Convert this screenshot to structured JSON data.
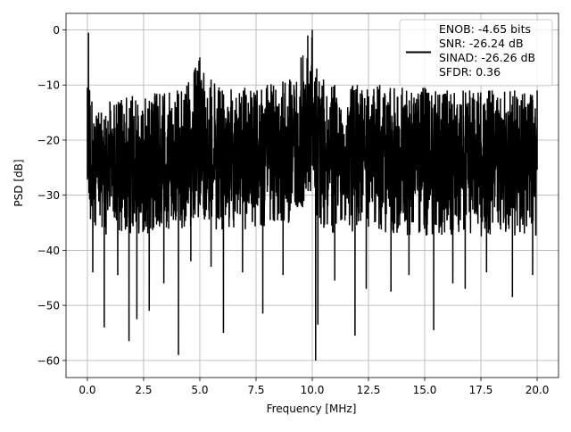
{
  "chart_data": {
    "type": "line",
    "xlabel": "Frequency [MHz]",
    "ylabel": "PSD [dB]",
    "xlim": [
      -0.95,
      20.95
    ],
    "ylim": [
      -63.1,
      3.0
    ],
    "xticks": [
      0.0,
      2.5,
      5.0,
      7.5,
      10.0,
      12.5,
      15.0,
      17.5,
      20.0
    ],
    "xtick_labels": [
      "0.0",
      "2.5",
      "5.0",
      "7.5",
      "10.0",
      "12.5",
      "15.0",
      "17.5",
      "20.0"
    ],
    "yticks": [
      0,
      -10,
      -20,
      -30,
      -40,
      -50,
      -60
    ],
    "ytick_labels": [
      "0",
      "−10",
      "−20",
      "−30",
      "−40",
      "−50",
      "−60"
    ],
    "grid": true,
    "legend": {
      "placement": "upper-right",
      "entries": [
        "ENOB: -4.65 bits",
        "SNR: -26.24 dB",
        "SINAD: -26.26 dB",
        "SFDR: 0.36"
      ]
    },
    "series": [
      {
        "color": "#000000",
        "envelope": {
          "x": [
            0.0,
            0.05,
            0.1,
            0.2,
            0.5,
            1.0,
            2.0,
            3.0,
            4.0,
            4.5,
            5.0,
            5.5,
            6.0,
            7.0,
            8.0,
            9.0,
            9.5,
            9.8,
            10.0,
            10.2,
            10.5,
            11.0,
            12.0,
            13.0,
            14.0,
            15.0,
            16.0,
            17.0,
            18.0,
            19.0,
            20.0
          ],
          "upper": [
            -10.5,
            -0.5,
            -11.0,
            -13.0,
            -15.0,
            -13.0,
            -12.0,
            -11.5,
            -11.0,
            -9.5,
            -5.0,
            -9.0,
            -11.0,
            -10.5,
            -10.0,
            -9.0,
            -5.0,
            -1.0,
            0.0,
            -7.0,
            -9.0,
            -10.0,
            -10.0,
            -10.0,
            -10.5,
            -10.5,
            -11.0,
            -11.0,
            -11.0,
            -11.0,
            -11.0
          ],
          "mid_hi": [
            -17.0,
            -14.0,
            -18.0,
            -20.0,
            -19.0,
            -18.0,
            -17.5,
            -17.0,
            -16.5,
            -15.5,
            -13.0,
            -15.0,
            -16.0,
            -16.0,
            -16.0,
            -15.0,
            -13.0,
            -11.0,
            -10.0,
            -13.0,
            -15.0,
            -16.0,
            -16.0,
            -16.0,
            -16.0,
            -16.0,
            -16.0,
            -16.0,
            -16.0,
            -16.0,
            -16.0
          ],
          "mid_lo": [
            -29.0,
            -28.0,
            -30.0,
            -33.0,
            -32.0,
            -31.0,
            -31.0,
            -31.0,
            -30.5,
            -29.5,
            -28.0,
            -29.5,
            -30.0,
            -30.0,
            -29.5,
            -28.5,
            -27.0,
            -25.0,
            -24.0,
            -27.0,
            -29.0,
            -30.0,
            -30.0,
            -30.0,
            -30.5,
            -30.5,
            -30.5,
            -30.5,
            -30.5,
            -30.5,
            -30.5
          ],
          "lower": [
            -33.0,
            -33.0,
            -36.0,
            -39.0,
            -38.0,
            -37.0,
            -37.0,
            -37.0,
            -36.5,
            -36.0,
            -34.0,
            -36.0,
            -36.5,
            -36.5,
            -36.0,
            -35.0,
            -33.0,
            -31.0,
            -29.5,
            -34.0,
            -36.0,
            -37.0,
            -37.0,
            -37.0,
            -37.5,
            -37.5,
            -37.5,
            -37.5,
            -37.5,
            -37.5,
            -37.5
          ]
        },
        "dips": [
          {
            "x": 0.24,
            "y": -44.0
          },
          {
            "x": 0.75,
            "y": -54.0
          },
          {
            "x": 1.35,
            "y": -44.5
          },
          {
            "x": 1.85,
            "y": -56.5
          },
          {
            "x": 2.2,
            "y": -52.5
          },
          {
            "x": 2.75,
            "y": -51.0
          },
          {
            "x": 3.4,
            "y": -46.0
          },
          {
            "x": 4.05,
            "y": -59.0
          },
          {
            "x": 4.6,
            "y": -42.0
          },
          {
            "x": 5.5,
            "y": -43.0
          },
          {
            "x": 6.05,
            "y": -55.0
          },
          {
            "x": 6.9,
            "y": -44.0
          },
          {
            "x": 7.8,
            "y": -51.5
          },
          {
            "x": 8.7,
            "y": -44.5
          },
          {
            "x": 10.15,
            "y": -60.0
          },
          {
            "x": 10.25,
            "y": -53.5
          },
          {
            "x": 11.0,
            "y": -45.5
          },
          {
            "x": 11.9,
            "y": -55.5
          },
          {
            "x": 12.4,
            "y": -47.0
          },
          {
            "x": 13.5,
            "y": -47.5
          },
          {
            "x": 14.3,
            "y": -44.5
          },
          {
            "x": 15.4,
            "y": -54.5
          },
          {
            "x": 16.25,
            "y": -46.0
          },
          {
            "x": 16.8,
            "y": -47.0
          },
          {
            "x": 17.75,
            "y": -44.0
          },
          {
            "x": 18.9,
            "y": -48.5
          },
          {
            "x": 19.8,
            "y": -44.5
          }
        ]
      }
    ]
  }
}
